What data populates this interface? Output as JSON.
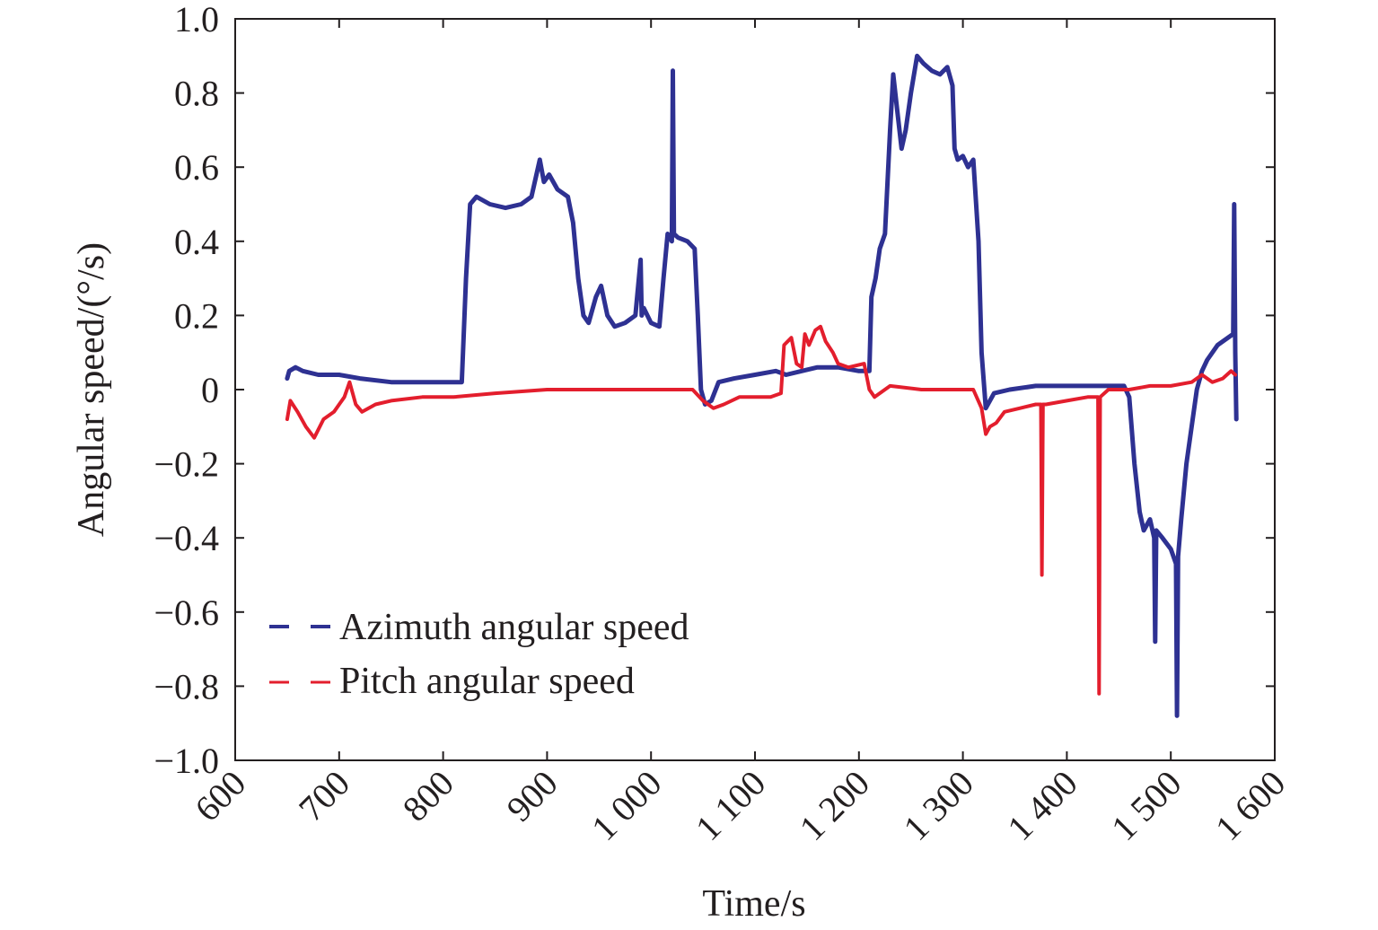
{
  "chart_data": {
    "type": "line",
    "title": "",
    "xlabel": "Time/s",
    "ylabel": "Angular speed/(°/s)",
    "xlim": [
      600,
      1600
    ],
    "ylim": [
      -1.0,
      1.0
    ],
    "x_ticks": [
      600,
      700,
      800,
      900,
      1000,
      1100,
      1200,
      1300,
      1400,
      1500,
      1600
    ],
    "x_tick_labels": [
      "600",
      "700",
      "800",
      "900",
      "1 000",
      "1 100",
      "1 200",
      "1 300",
      "1 400",
      "1 500",
      "1 600"
    ],
    "y_ticks": [
      1.0,
      0.8,
      0.6,
      0.4,
      0.2,
      0,
      -0.2,
      -0.4,
      -0.6,
      -0.8,
      -1.0
    ],
    "y_tick_labels": [
      "1.0",
      "0.8",
      "0.6",
      "0.4",
      "0.2",
      "0",
      "−0.2",
      "−0.4",
      "−0.6",
      "−0.8",
      "−1.0"
    ],
    "grid": false,
    "legend": {
      "position": "bottom-left",
      "entries": [
        "Azimuth angular speed",
        "Pitch angular speed"
      ]
    },
    "series": [
      {
        "name": "Azimuth angular speed",
        "color": "#2e3192",
        "x": [
          650,
          652,
          658,
          665,
          680,
          700,
          720,
          750,
          780,
          800,
          818,
          822,
          826,
          832,
          845,
          860,
          875,
          885,
          893,
          897,
          902,
          910,
          920,
          925,
          930,
          935,
          940,
          947,
          952,
          958,
          965,
          975,
          985,
          990,
          991,
          993,
          1000,
          1008,
          1012,
          1016,
          1020,
          1021,
          1022,
          1026,
          1035,
          1042,
          1045,
          1048,
          1052,
          1058,
          1065,
          1080,
          1100,
          1120,
          1130,
          1145,
          1160,
          1180,
          1200,
          1210,
          1212,
          1216,
          1220,
          1225,
          1230,
          1233,
          1237,
          1241,
          1245,
          1250,
          1256,
          1262,
          1270,
          1278,
          1285,
          1290,
          1292,
          1295,
          1300,
          1305,
          1310,
          1315,
          1318,
          1322,
          1330,
          1345,
          1370,
          1400,
          1430,
          1455,
          1460,
          1465,
          1470,
          1474,
          1480,
          1484,
          1485,
          1486,
          1492,
          1500,
          1505,
          1506,
          1507,
          1510,
          1515,
          1520,
          1525,
          1530,
          1535,
          1545,
          1555,
          1560,
          1561,
          1562,
          1563
        ],
        "values": [
          0.03,
          0.05,
          0.06,
          0.05,
          0.04,
          0.04,
          0.03,
          0.02,
          0.02,
          0.02,
          0.02,
          0.3,
          0.5,
          0.52,
          0.5,
          0.49,
          0.5,
          0.52,
          0.62,
          0.56,
          0.58,
          0.54,
          0.52,
          0.45,
          0.3,
          0.2,
          0.18,
          0.25,
          0.28,
          0.2,
          0.17,
          0.18,
          0.2,
          0.35,
          0.2,
          0.22,
          0.18,
          0.17,
          0.3,
          0.42,
          0.4,
          0.86,
          0.42,
          0.41,
          0.4,
          0.38,
          0.2,
          0.0,
          -0.04,
          -0.03,
          0.02,
          0.03,
          0.04,
          0.05,
          0.04,
          0.05,
          0.06,
          0.06,
          0.05,
          0.05,
          0.25,
          0.3,
          0.38,
          0.42,
          0.7,
          0.85,
          0.75,
          0.65,
          0.7,
          0.8,
          0.9,
          0.88,
          0.86,
          0.85,
          0.87,
          0.82,
          0.65,
          0.62,
          0.63,
          0.6,
          0.62,
          0.4,
          0.1,
          -0.05,
          -0.01,
          0.0,
          0.01,
          0.01,
          0.01,
          0.01,
          -0.02,
          -0.2,
          -0.33,
          -0.38,
          -0.35,
          -0.4,
          -0.68,
          -0.38,
          -0.4,
          -0.43,
          -0.47,
          -0.88,
          -0.45,
          -0.35,
          -0.2,
          -0.1,
          0.0,
          0.05,
          0.08,
          0.12,
          0.14,
          0.15,
          0.5,
          0.1,
          -0.08
        ]
      },
      {
        "name": "Pitch angular speed",
        "color": "#e31e2d",
        "x": [
          650,
          653,
          660,
          668,
          676,
          685,
          695,
          705,
          710,
          716,
          722,
          735,
          750,
          780,
          810,
          850,
          900,
          950,
          1000,
          1040,
          1050,
          1060,
          1070,
          1085,
          1100,
          1115,
          1125,
          1128,
          1135,
          1140,
          1145,
          1148,
          1152,
          1158,
          1163,
          1168,
          1175,
          1180,
          1190,
          1205,
          1210,
          1215,
          1230,
          1260,
          1290,
          1310,
          1318,
          1322,
          1326,
          1332,
          1340,
          1355,
          1370,
          1375,
          1376,
          1377,
          1380,
          1400,
          1420,
          1430,
          1431,
          1432,
          1440,
          1460,
          1480,
          1500,
          1520,
          1530,
          1540,
          1550,
          1558,
          1562
        ],
        "values": [
          -0.08,
          -0.03,
          -0.06,
          -0.1,
          -0.13,
          -0.08,
          -0.06,
          -0.02,
          0.02,
          -0.04,
          -0.06,
          -0.04,
          -0.03,
          -0.02,
          -0.02,
          -0.01,
          0.0,
          0.0,
          0.0,
          0.0,
          -0.03,
          -0.05,
          -0.04,
          -0.02,
          -0.02,
          -0.02,
          -0.01,
          0.12,
          0.14,
          0.07,
          0.06,
          0.15,
          0.12,
          0.16,
          0.17,
          0.13,
          0.1,
          0.07,
          0.06,
          0.07,
          0.0,
          -0.02,
          0.01,
          0.0,
          0.0,
          0.0,
          -0.05,
          -0.12,
          -0.1,
          -0.09,
          -0.06,
          -0.05,
          -0.04,
          -0.04,
          -0.5,
          -0.04,
          -0.04,
          -0.03,
          -0.02,
          -0.02,
          -0.82,
          -0.02,
          0.0,
          0.0,
          0.01,
          0.01,
          0.02,
          0.04,
          0.02,
          0.03,
          0.05,
          0.04
        ]
      }
    ]
  }
}
